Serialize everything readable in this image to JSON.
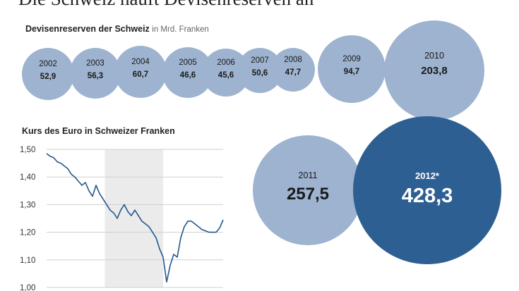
{
  "headline": "Die Schweiz häuft Devisenreserven an",
  "colors": {
    "bubble": "#9db3cf",
    "highlight": "#2e5f93",
    "line": "#24588c",
    "shade": "#ebebeb"
  },
  "chart_data": [
    {
      "type": "bubble",
      "title": "Devisenreserven der Schweiz",
      "unit": "in Mrd. Franken",
      "categories": [
        "2002",
        "2003",
        "2004",
        "2005",
        "2006",
        "2007",
        "2008",
        "2009",
        "2010",
        "2011",
        "2012*"
      ],
      "labels": [
        "52,9",
        "56,3",
        "60,7",
        "46,6",
        "45,6",
        "50,6",
        "47,7",
        "94,7",
        "203,8",
        "257,5",
        "428,3"
      ],
      "values": [
        52.9,
        56.3,
        60.7,
        46.6,
        45.6,
        50.6,
        47.7,
        94.7,
        203.8,
        257.5,
        428.3
      ],
      "highlight": "2012*"
    },
    {
      "type": "line",
      "title": "Kurs des Euro in Schweizer Franken",
      "ylim": [
        1.0,
        1.5
      ],
      "yticks": [
        "1,50",
        "1,40",
        "1,30",
        "1,20",
        "1,10",
        "1,00"
      ],
      "grid": true,
      "note": "shaded alternating year bands",
      "series": [
        {
          "x": [
            0,
            0.02,
            0.04,
            0.06,
            0.08,
            0.1,
            0.12,
            0.14,
            0.16,
            0.18,
            0.2,
            0.22,
            0.24,
            0.26,
            0.28,
            0.3,
            0.32,
            0.34,
            0.36,
            0.38,
            0.4,
            0.42,
            0.44,
            0.46,
            0.48,
            0.5,
            0.52,
            0.54,
            0.56,
            0.58,
            0.6,
            0.62,
            0.64,
            0.66,
            0.68,
            0.7,
            0.72,
            0.74,
            0.76,
            0.78,
            0.8,
            0.82,
            0.84,
            0.86,
            0.88,
            0.9,
            0.92,
            0.94,
            0.96,
            0.98,
            1.0
          ],
          "y": [
            1.485,
            1.475,
            1.47,
            1.455,
            1.45,
            1.44,
            1.43,
            1.41,
            1.4,
            1.385,
            1.37,
            1.38,
            1.35,
            1.33,
            1.37,
            1.34,
            1.32,
            1.3,
            1.28,
            1.27,
            1.25,
            1.28,
            1.3,
            1.275,
            1.26,
            1.28,
            1.26,
            1.24,
            1.23,
            1.22,
            1.2,
            1.18,
            1.14,
            1.11,
            1.02,
            1.08,
            1.12,
            1.11,
            1.18,
            1.22,
            1.24,
            1.24,
            1.23,
            1.22,
            1.21,
            1.205,
            1.2,
            1.2,
            1.2,
            1.215,
            1.245
          ]
        }
      ]
    }
  ]
}
